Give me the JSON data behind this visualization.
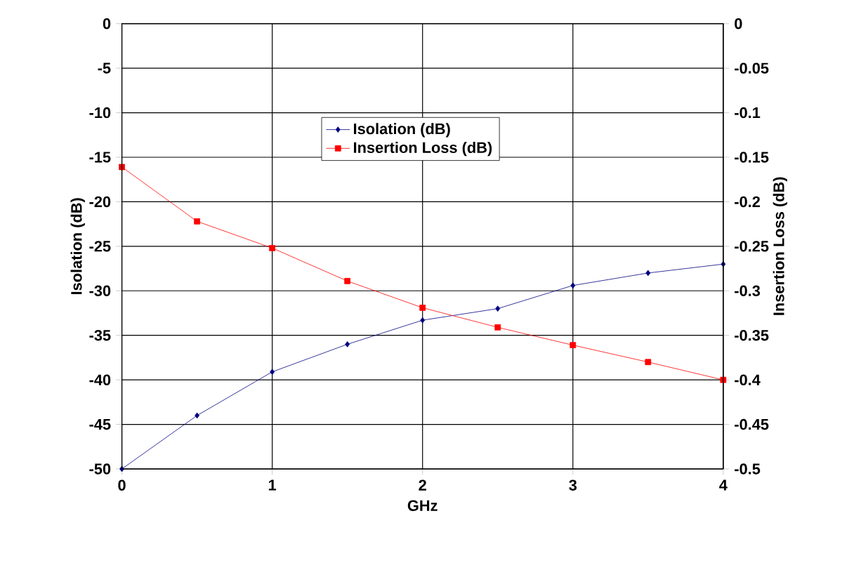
{
  "chart_data": {
    "type": "line",
    "xlabel": "GHz",
    "ylabel": "Isolation (dB)",
    "y2label": "Insertion Loss (dB)",
    "x": [
      0,
      0.5,
      1,
      1.5,
      2,
      2.5,
      3,
      3.5,
      4
    ],
    "series": [
      {
        "name": "Isolation (dB)",
        "color": "#000080",
        "marker": "diamond",
        "values": [
          -50,
          -44,
          -39.1,
          -36,
          -33.3,
          -32,
          -29.4,
          -28,
          -27
        ]
      },
      {
        "name": "Insertion Loss (dB)",
        "color": "#ff0000",
        "marker": "square",
        "axis": "y2",
        "values": [
          -0.161,
          -0.222,
          -0.252,
          -0.289,
          -0.319,
          -0.341,
          -0.361,
          -0.38,
          -0.4
        ]
      }
    ],
    "xlim": [
      0,
      4
    ],
    "xticks": [
      0,
      1,
      2,
      3,
      4
    ],
    "ylim": [
      -50,
      0
    ],
    "yticks": [
      -50,
      -45,
      -40,
      -35,
      -30,
      -25,
      -20,
      -15,
      -10,
      -5,
      0
    ],
    "y2lim": [
      -0.5,
      0
    ],
    "y2ticks": [
      -0.5,
      -0.45,
      -0.4,
      -0.35,
      -0.3,
      -0.25,
      -0.2,
      -0.15,
      -0.1,
      -0.05,
      0
    ],
    "grid": true,
    "legend": "top"
  }
}
